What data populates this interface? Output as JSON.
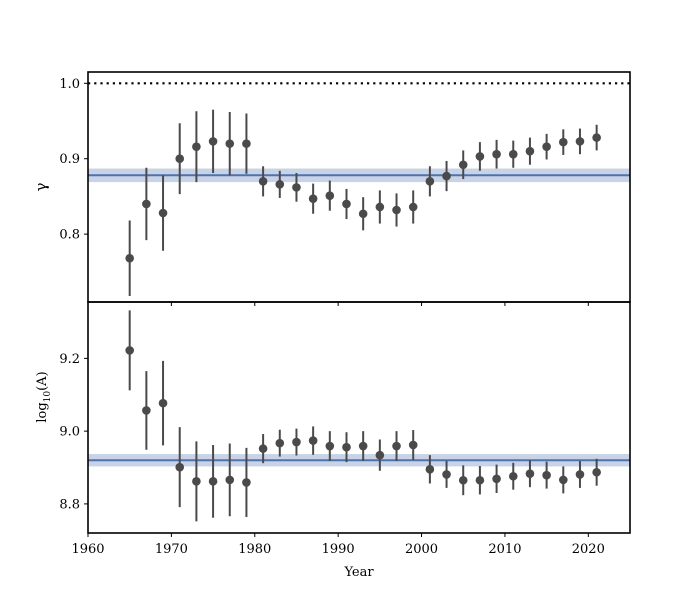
{
  "chart_data": [
    {
      "type": "scatter",
      "panel": "top",
      "ylabel": "γ",
      "xlim": [
        1960,
        2025
      ],
      "ylim": [
        0.71,
        1.015
      ],
      "yticks": [
        0.8,
        0.9,
        1.0
      ],
      "ytick_labels": [
        "0.8",
        "0.9",
        "1.0"
      ],
      "reference_line": {
        "value": 1.0,
        "style": "dotted",
        "color": "#000000"
      },
      "fit_line": {
        "value": 0.878,
        "band": [
          0.869,
          0.887
        ],
        "color": "#4c72b0",
        "band_color": "#c9d3e6"
      },
      "marker_color": "#4a4a4a",
      "points": [
        {
          "x": 1965,
          "y": 0.768,
          "err": 0.05
        },
        {
          "x": 1967,
          "y": 0.84,
          "err": 0.048
        },
        {
          "x": 1969,
          "y": 0.828,
          "err": 0.05
        },
        {
          "x": 1971,
          "y": 0.9,
          "err": 0.047
        },
        {
          "x": 1973,
          "y": 0.916,
          "err": 0.047
        },
        {
          "x": 1975,
          "y": 0.923,
          "err": 0.042
        },
        {
          "x": 1977,
          "y": 0.92,
          "err": 0.042
        },
        {
          "x": 1979,
          "y": 0.92,
          "err": 0.04
        },
        {
          "x": 1981,
          "y": 0.87,
          "err": 0.02
        },
        {
          "x": 1983,
          "y": 0.866,
          "err": 0.018
        },
        {
          "x": 1985,
          "y": 0.862,
          "err": 0.019
        },
        {
          "x": 1987,
          "y": 0.847,
          "err": 0.02
        },
        {
          "x": 1989,
          "y": 0.851,
          "err": 0.02
        },
        {
          "x": 1991,
          "y": 0.84,
          "err": 0.02
        },
        {
          "x": 1993,
          "y": 0.827,
          "err": 0.022
        },
        {
          "x": 1995,
          "y": 0.836,
          "err": 0.022
        },
        {
          "x": 1997,
          "y": 0.832,
          "err": 0.022
        },
        {
          "x": 1999,
          "y": 0.836,
          "err": 0.022
        },
        {
          "x": 2001,
          "y": 0.87,
          "err": 0.02
        },
        {
          "x": 2003,
          "y": 0.877,
          "err": 0.02
        },
        {
          "x": 2005,
          "y": 0.892,
          "err": 0.019
        },
        {
          "x": 2007,
          "y": 0.903,
          "err": 0.019
        },
        {
          "x": 2009,
          "y": 0.906,
          "err": 0.019
        },
        {
          "x": 2011,
          "y": 0.906,
          "err": 0.018
        },
        {
          "x": 2013,
          "y": 0.91,
          "err": 0.018
        },
        {
          "x": 2015,
          "y": 0.916,
          "err": 0.017
        },
        {
          "x": 2017,
          "y": 0.922,
          "err": 0.017
        },
        {
          "x": 2019,
          "y": 0.923,
          "err": 0.017
        },
        {
          "x": 2021,
          "y": 0.928,
          "err": 0.017
        }
      ]
    },
    {
      "type": "scatter",
      "panel": "bottom",
      "ylabel": "log10(A)",
      "ylabel_main": "log",
      "ylabel_sub": "10",
      "ylabel_arg": "(A)",
      "xlabel": "Year",
      "xlim": [
        1960,
        2025
      ],
      "ylim": [
        8.72,
        9.355
      ],
      "xticks": [
        1960,
        1970,
        1980,
        1990,
        2000,
        2010,
        2020
      ],
      "xtick_labels": [
        "1960",
        "1970",
        "1980",
        "1990",
        "2000",
        "2010",
        "2020"
      ],
      "yticks": [
        8.8,
        9.0,
        9.2
      ],
      "ytick_labels": [
        "8.8",
        "9.0",
        "9.2"
      ],
      "fit_line": {
        "value": 8.92,
        "band": [
          8.903,
          8.937
        ],
        "color": "#4c72b0",
        "band_color": "#c9d3e6"
      },
      "marker_color": "#4a4a4a",
      "points": [
        {
          "x": 1965,
          "y": 9.222,
          "err": 0.11
        },
        {
          "x": 1967,
          "y": 9.057,
          "err": 0.108
        },
        {
          "x": 1969,
          "y": 9.077,
          "err": 0.116
        },
        {
          "x": 1971,
          "y": 8.901,
          "err": 0.11
        },
        {
          "x": 1973,
          "y": 8.862,
          "err": 0.11
        },
        {
          "x": 1975,
          "y": 8.862,
          "err": 0.1
        },
        {
          "x": 1977,
          "y": 8.866,
          "err": 0.1
        },
        {
          "x": 1979,
          "y": 8.859,
          "err": 0.095
        },
        {
          "x": 1981,
          "y": 8.952,
          "err": 0.04
        },
        {
          "x": 1983,
          "y": 8.967,
          "err": 0.037
        },
        {
          "x": 1985,
          "y": 8.97,
          "err": 0.037
        },
        {
          "x": 1987,
          "y": 8.974,
          "err": 0.039
        },
        {
          "x": 1989,
          "y": 8.959,
          "err": 0.041
        },
        {
          "x": 1991,
          "y": 8.956,
          "err": 0.041
        },
        {
          "x": 1993,
          "y": 8.959,
          "err": 0.041
        },
        {
          "x": 1995,
          "y": 8.934,
          "err": 0.043
        },
        {
          "x": 1997,
          "y": 8.959,
          "err": 0.041
        },
        {
          "x": 1999,
          "y": 8.962,
          "err": 0.041
        },
        {
          "x": 2001,
          "y": 8.895,
          "err": 0.039
        },
        {
          "x": 2003,
          "y": 8.881,
          "err": 0.037
        },
        {
          "x": 2005,
          "y": 8.865,
          "err": 0.041
        },
        {
          "x": 2007,
          "y": 8.865,
          "err": 0.039
        },
        {
          "x": 2009,
          "y": 8.869,
          "err": 0.039
        },
        {
          "x": 2011,
          "y": 8.876,
          "err": 0.037
        },
        {
          "x": 2013,
          "y": 8.883,
          "err": 0.037
        },
        {
          "x": 2015,
          "y": 8.879,
          "err": 0.037
        },
        {
          "x": 2017,
          "y": 8.866,
          "err": 0.037
        },
        {
          "x": 2019,
          "y": 8.881,
          "err": 0.037
        },
        {
          "x": 2021,
          "y": 8.887,
          "err": 0.037
        }
      ]
    }
  ]
}
